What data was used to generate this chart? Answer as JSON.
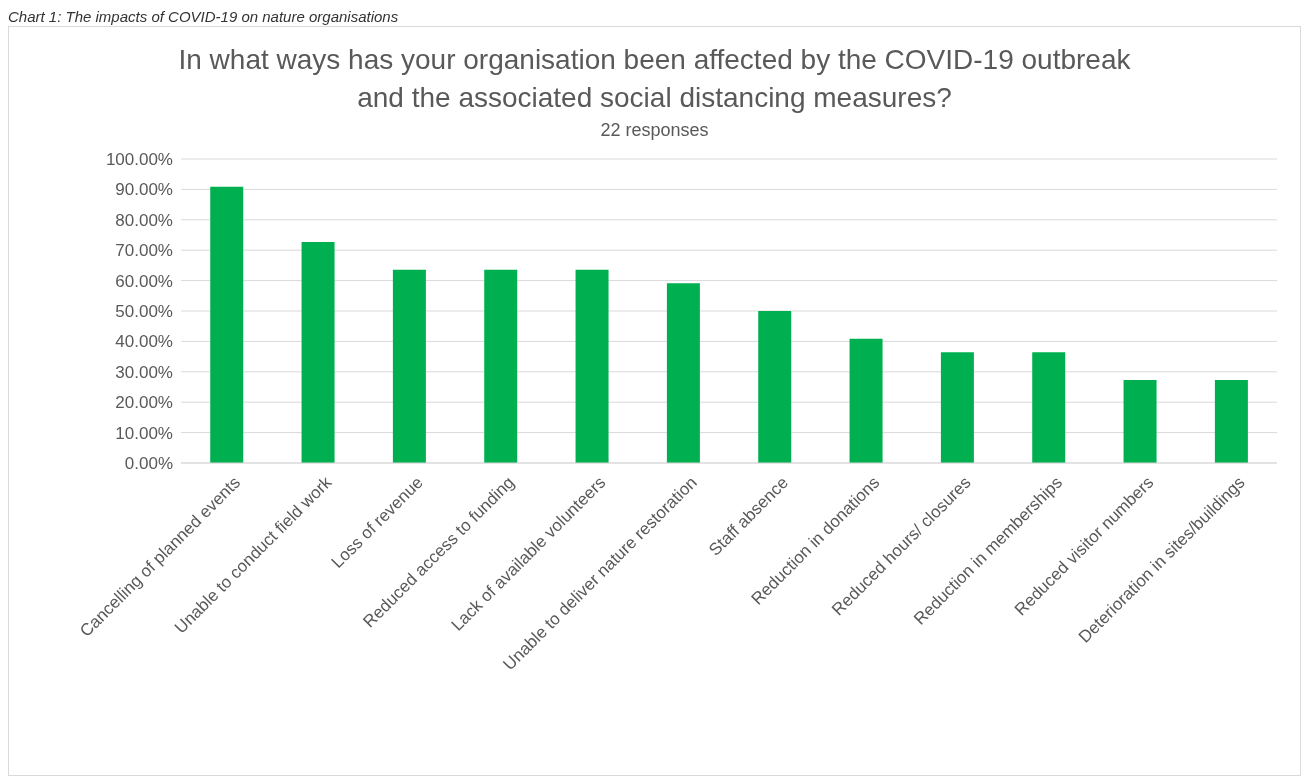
{
  "chart_data": {
    "type": "bar",
    "title": "In what ways has your organisation been affected by the COVID-19 outbreak and the associated social distancing measures?",
    "subtitle": "22 responses",
    "annotations": [
      "Chart 1: The impacts of COVID-19 on nature organisations"
    ],
    "categories": [
      "Cancelling of planned events",
      "Unable to conduct field work",
      "Loss of revenue",
      "Reduced access to funding",
      "Lack of available volunteers",
      "Unable to deliver nature restoration",
      "Staff absence",
      "Reduction in donations",
      "Reduced hours/ closures",
      "Reduction in memberships",
      "Reduced visitor numbers",
      "Deterioration in sites/buildings"
    ],
    "values": [
      90.9,
      72.7,
      63.6,
      63.6,
      63.6,
      59.1,
      50,
      40.9,
      36.4,
      36.4,
      27.3,
      27.3
    ],
    "color": "#00b050",
    "ylim": [
      0,
      100
    ],
    "yticks": [
      {
        "value": 0,
        "label": "0.00%"
      },
      {
        "value": 10,
        "label": "10.00%"
      },
      {
        "value": 20,
        "label": "20.00%"
      },
      {
        "value": 30,
        "label": "30.00%"
      },
      {
        "value": 40,
        "label": "40.00%"
      },
      {
        "value": 50,
        "label": "50.00%"
      },
      {
        "value": 60,
        "label": "60.00%"
      },
      {
        "value": 70,
        "label": "70.00%"
      },
      {
        "value": 80,
        "label": "80.00%"
      },
      {
        "value": 90,
        "label": "90.00%"
      },
      {
        "value": 100,
        "label": "100.00%"
      }
    ],
    "grid": "y",
    "legend": false
  }
}
